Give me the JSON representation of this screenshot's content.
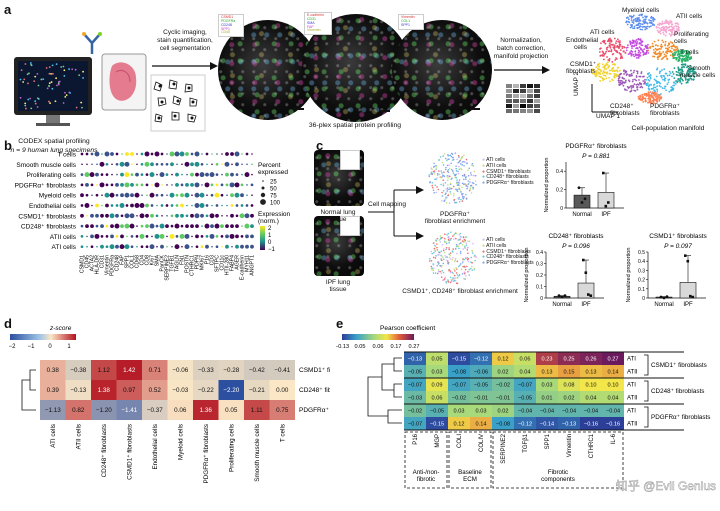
{
  "panels": {
    "a": "a",
    "b": "b",
    "c": "c",
    "d": "d",
    "e": "e"
  },
  "panel_a": {
    "codex_title": "CODEX spatial profiling",
    "codex_n": "n = 9 human lung specimens",
    "step1": [
      "Cyclic imaging,",
      "stain quantification,",
      "cell segmentation"
    ],
    "step_36plex": "36-plex spatial protein profiling",
    "step2": [
      "Normalization,",
      "batch correction,",
      "manifold projection"
    ],
    "umap_title": "Cell-population manifold",
    "umap_y": "UMAP 2",
    "umap_x": "UMAP 1",
    "clusters": {
      "myeloid": "Myeloid cells",
      "atii": "ATII cells",
      "endothelial": [
        "Endothelial",
        "cells"
      ],
      "proliferating": [
        "Proliferating",
        "cells"
      ],
      "csmd1": [
        "CSMD1⁺",
        "fibroblasts"
      ],
      "tcells": "T cells",
      "smooth": [
        "Smooth",
        "muscle cells"
      ],
      "cd248": [
        "CD248⁺",
        "fibroblasts"
      ],
      "pdgfra": [
        "PDGFRα⁺",
        "fibroblasts"
      ],
      "ati": "ATI cells"
    },
    "micro_legend_1": [
      "CSMD1",
      "PDGFRa",
      "CD248",
      "SPP1",
      "CD45"
    ],
    "micro_legend_2": [
      "E-cadherin",
      "CD31",
      "SMA",
      "FAP",
      "Vimentin"
    ],
    "micro_legend_3": [
      "Vimentin",
      "COL1",
      "SPP1"
    ]
  },
  "panel_b": {
    "rows": [
      "T cells",
      "Smooth muscle cells",
      "Proliferating cells",
      "PDGFRα⁺ fibroblasts",
      "Myeloid cells",
      "Endothelial cells",
      "CSMD1⁺ fibroblasts",
      "CD248⁺ fibroblasts",
      "ATII cells",
      "ATI cells"
    ],
    "markers": [
      "CSMD1",
      "CD45",
      "ACTA2",
      "HLA-DR",
      "CD31",
      "Vimentin",
      "PDGFRa",
      "CD248",
      "FAP",
      "SPP1",
      "COL1",
      "CD68",
      "CD4",
      "CD8",
      "Ki67",
      "SMA",
      "PanCK",
      "SERPINE2",
      "TGFB1",
      "TAGLN",
      "FN1",
      "POSTN",
      "CTHRC1",
      "PDPN",
      "MKI67",
      "P16",
      "CD3",
      "SFTPC",
      "CD11c",
      "HTII-280",
      "FABP4",
      "AGER",
      "E-cadherin",
      "MYH11",
      "ANGPT1"
    ],
    "legend_pct_title": [
      "Percent",
      "expressed"
    ],
    "legend_pct": [
      "25",
      "50",
      "75",
      "100"
    ],
    "legend_expr_title": [
      "Expression",
      "(norm.)"
    ],
    "legend_expr_ticks": [
      "2",
      "1",
      "0",
      "−1"
    ]
  },
  "panel_c": {
    "normal_label": [
      "Normal lung",
      "tissue"
    ],
    "ipf_label": [
      "IPF lung",
      "tissue"
    ],
    "cell_mapping": "Cell mapping",
    "pdgfra_enrich": [
      "PDGFRα⁺",
      "fibroblast enrichment"
    ],
    "csmd1_enrich": "CSMD1⁺, CD248⁺ fibroblast enrichment",
    "map_legend": [
      "ATI cells",
      "ATII cells",
      "CSMD1⁺ fibroblasts",
      "CD248⁺ fibroblasts",
      "PDGFRα⁺ fibroblasts"
    ],
    "ylabel": "Normalized proportion"
  },
  "chart_data": [
    {
      "type": "bar",
      "title": "PDGFRα⁺ fibroblasts",
      "categories": [
        "Normal",
        "IPF"
      ],
      "values": [
        0.14,
        0.17
      ],
      "ylabel": "Normalized proportion",
      "annotation": "P = 0.881",
      "ylim": [
        0,
        0.5
      ],
      "yticks": [
        "0",
        "0.2",
        "0.4"
      ]
    },
    {
      "type": "bar",
      "title": "CD248⁺ fibroblasts",
      "categories": [
        "Normal",
        "IPF"
      ],
      "values": [
        0.015,
        0.13
      ],
      "ylabel": "Normalized proportion",
      "annotation": "P = 0.096",
      "ylim": [
        0,
        0.4
      ],
      "yticks": [
        "0",
        "0.1",
        "0.2",
        "0.3",
        "0.4"
      ]
    },
    {
      "type": "bar",
      "title": "CSMD1⁺ fibroblasts",
      "categories": [
        "Normal",
        "IPF"
      ],
      "values": [
        0.01,
        0.17
      ],
      "ylabel": "Normalized proportion",
      "annotation": "P = 0.097",
      "ylim": [
        0,
        0.5
      ],
      "yticks": [
        "0",
        "0.1",
        "0.2",
        "0.3",
        "0.4",
        "0.5"
      ]
    },
    {
      "type": "heatmap",
      "name": "panel_d",
      "legend_title": "z-score",
      "legend_ticks": [
        "−2",
        "−1",
        "0",
        "1"
      ],
      "rows": [
        "CSMD1⁺ fibroblasts",
        "CD248⁺ fibroblasts",
        "PDGFRα⁺ fibroblasts"
      ],
      "cols": [
        "ATI cells",
        "ATII cells",
        "CD248⁺ fibroblasts",
        "CSMD1⁺ fibroblasts",
        "Endothelial cells",
        "Myeloid cells",
        "PDGFRα⁺ fibroblasts",
        "Proliferating cells",
        "Smooth muscle cells",
        "T cells"
      ],
      "values": [
        [
          0.38,
          -0.38,
          1.12,
          1.42,
          0.71,
          -0.06,
          -0.33,
          -0.28,
          -0.42,
          -0.41
        ],
        [
          0.39,
          -0.13,
          1.38,
          0.97,
          0.52,
          -0.03,
          -0.22,
          -2.2,
          -0.21,
          0.0
        ],
        [
          -1.13,
          0.82,
          -1.2,
          -1.41,
          -0.37,
          0.06,
          1.36,
          0.05,
          1.11,
          0.75
        ]
      ],
      "labels": [
        [
          "0.38",
          "−0.38",
          "1.12",
          "1.42",
          "0.71",
          "−0.06",
          "−0.33",
          "−0.28",
          "−0.42",
          "−0.41"
        ],
        [
          "0.39",
          "−0.13",
          "1.38",
          "0.97",
          "0.52",
          "−0.03",
          "−0.22",
          "−2.20",
          "−0.21",
          "0.00"
        ],
        [
          "−1.13",
          "0.82",
          "−1.20",
          "−1.41",
          "−0.37",
          "0.06",
          "1.36",
          "0.05",
          "1.11",
          "0.75"
        ]
      ]
    },
    {
      "type": "heatmap",
      "name": "panel_e",
      "legend_title": "Pearson coefficient",
      "legend_ticks": [
        "−0.13",
        "0.05",
        "0.06",
        "0.17",
        "0.27"
      ],
      "cols": [
        "P16",
        "MGP",
        "COLI",
        "COLIV",
        "SERPINE2",
        "TGFβ1",
        "SPP1",
        "Vimentin",
        "CTHRC1",
        "IL-6"
      ],
      "row_groups": [
        {
          "name": "CSMD1⁺ fibroblasts",
          "rows": [
            "ATI",
            "ATII"
          ]
        },
        {
          "name": "CD248⁺ fibroblasts",
          "rows": [
            "ATI",
            "ATII"
          ]
        },
        {
          "name": "PDGFRα⁺ fibroblasts",
          "rows": [
            "ATI",
            "ATII"
          ]
        }
      ],
      "values": [
        [
          -0.13,
          0.05,
          -0.15,
          -0.12,
          0.12,
          0.06,
          0.23,
          0.25,
          0.26,
          0.27
        ],
        [
          -0.05,
          0.03,
          -0.08,
          -0.06,
          0.02,
          0.04,
          0.13,
          0.15,
          0.13,
          0.14
        ],
        [
          -0.07,
          0.09,
          -0.07,
          -0.05,
          -0.02,
          -0.07,
          0.03,
          0.08,
          0.1,
          0.1
        ],
        [
          -0.03,
          0.06,
          -0.02,
          -0.01,
          -0.01,
          -0.05,
          0.01,
          0.02,
          0.04,
          0.04
        ],
        [
          -0.02,
          -0.05,
          0.03,
          0.03,
          0.02,
          -0.04,
          -0.04,
          -0.04,
          -0.04,
          -0.04
        ],
        [
          -0.07,
          -0.15,
          0.12,
          0.14,
          -0.08,
          -0.12,
          -0.14,
          -0.13,
          -0.16,
          -0.16
        ]
      ],
      "labels": [
        [
          "−0.13",
          "0.05",
          "−0.15",
          "−0.12",
          "0.12",
          "0.06",
          "0.23",
          "0.25",
          "0.26",
          "0.27"
        ],
        [
          "−0.05",
          "0.03",
          "−0.08",
          "−0.06",
          "0.02",
          "0.04",
          "0.13",
          "0.15",
          "0.13",
          "0.14"
        ],
        [
          "−0.07",
          "0.09",
          "−0.07",
          "−0.05",
          "−0.02",
          "−0.07",
          "0.03",
          "0.08",
          "0.10",
          "0.10"
        ],
        [
          "−0.03",
          "0.06",
          "−0.02",
          "−0.01",
          "−0.01",
          "−0.05",
          "0.01",
          "0.02",
          "0.04",
          "0.04"
        ],
        [
          "−0.02",
          "−0.05",
          "0.03",
          "0.03",
          "0.02",
          "−0.04",
          "−0.04",
          "−0.04",
          "−0.04",
          "−0.04"
        ],
        [
          "−0.07",
          "−0.15",
          "0.12",
          "0.14",
          "−0.08",
          "−0.12",
          "−0.14",
          "−0.13",
          "−0.16",
          "−0.16"
        ]
      ],
      "col_groups": [
        {
          "name": [
            "Anti-/non-",
            "fibrotic"
          ]
        },
        {
          "name": [
            "Baseline",
            "ECM"
          ]
        },
        {
          "name": [
            "Fibrotic",
            "components"
          ]
        }
      ],
      "watermark": "知乎 @Evil Genius"
    }
  ]
}
